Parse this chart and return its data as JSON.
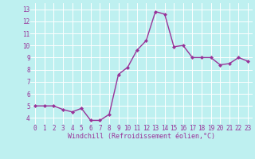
{
  "x": [
    0,
    1,
    2,
    3,
    4,
    5,
    6,
    7,
    8,
    9,
    10,
    11,
    12,
    13,
    14,
    15,
    16,
    17,
    18,
    19,
    20,
    21,
    22,
    23
  ],
  "y": [
    5.0,
    5.0,
    5.0,
    4.7,
    4.5,
    4.8,
    3.8,
    3.8,
    4.3,
    7.6,
    8.2,
    9.6,
    10.4,
    12.8,
    12.6,
    9.9,
    10.0,
    9.0,
    9.0,
    9.0,
    8.4,
    8.5,
    9.0,
    8.7
  ],
  "ylim": [
    3.5,
    13.5
  ],
  "yticks": [
    4,
    5,
    6,
    7,
    8,
    9,
    10,
    11,
    12,
    13
  ],
  "xlim": [
    -0.5,
    23.5
  ],
  "xticks": [
    0,
    1,
    2,
    3,
    4,
    5,
    6,
    7,
    8,
    9,
    10,
    11,
    12,
    13,
    14,
    15,
    16,
    17,
    18,
    19,
    20,
    21,
    22,
    23
  ],
  "xlabel": "Windchill (Refroidissement éolien,°C)",
  "line_color": "#993399",
  "marker": "D",
  "marker_size": 2.0,
  "bg_color": "#bef0f0",
  "grid_color": "#ffffff",
  "tick_color": "#993399",
  "label_color": "#993399",
  "tick_fontsize": 5.5,
  "xlabel_fontsize": 6.0,
  "linewidth": 1.0
}
